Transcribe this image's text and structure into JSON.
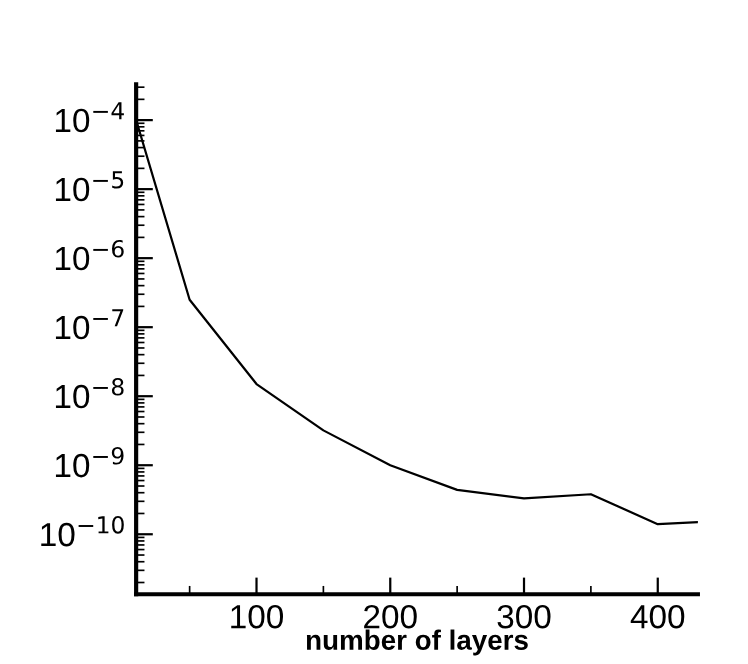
{
  "chart_data": {
    "type": "line",
    "xlabel": "number of layers",
    "x": [
      10,
      50,
      100,
      150,
      200,
      250,
      300,
      350,
      400,
      430
    ],
    "values": [
      0.0001,
      2.5e-07,
      1.5e-08,
      3.2e-09,
      1e-09,
      4.4e-10,
      3.3e-10,
      3.8e-10,
      1.4e-10,
      1.5e-10
    ],
    "color": "#000000",
    "log": "y",
    "xlim": [
      10,
      430
    ],
    "ylim": [
      1.35e-11,
      0.00033
    ],
    "xticks": [
      100,
      200,
      300,
      400
    ],
    "yticks": [
      {
        "value": 0.0001,
        "label": "10$^{−4}$"
      },
      {
        "value": 1e-05,
        "label": "10$^{−5}$"
      },
      {
        "value": 1e-06,
        "label": "10$^{−6}$"
      },
      {
        "value": 1e-07,
        "label": "10$^{−7}$"
      },
      {
        "value": 1e-08,
        "label": "10$^{−8}$"
      },
      {
        "value": 1e-09,
        "label": "10$^{−9}$"
      },
      {
        "value": 1e-10,
        "label": "10$^{−10}$"
      }
    ],
    "grid": false,
    "marker": "none",
    "line_style": "solid"
  }
}
